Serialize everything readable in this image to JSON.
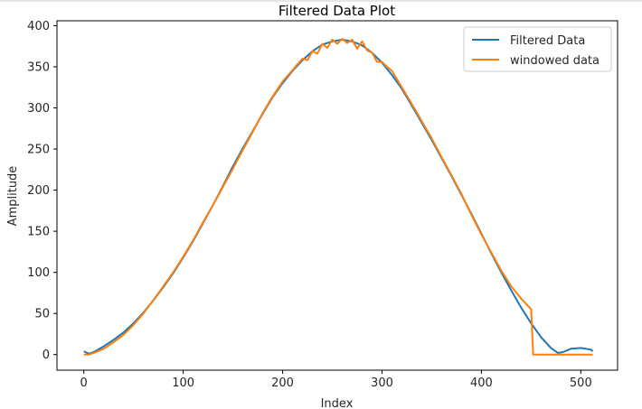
{
  "chart_data": {
    "type": "line",
    "title": "Filtered Data Plot",
    "xlabel": "Index",
    "ylabel": "Amplitude",
    "xlim": [
      -27,
      537
    ],
    "ylim": [
      -19,
      406
    ],
    "xticks": [
      0,
      100,
      200,
      300,
      400,
      500
    ],
    "yticks": [
      0,
      50,
      100,
      150,
      200,
      250,
      300,
      350,
      400
    ],
    "grid": false,
    "legend_position": "top-right",
    "series": [
      {
        "name": "Filtered Data",
        "color": "#1f77b4",
        "x": [
          0,
          5,
          10,
          20,
          30,
          40,
          50,
          60,
          70,
          80,
          90,
          100,
          110,
          120,
          130,
          140,
          150,
          160,
          170,
          180,
          190,
          200,
          210,
          220,
          230,
          240,
          250,
          260,
          270,
          280,
          290,
          300,
          310,
          320,
          330,
          340,
          350,
          360,
          370,
          380,
          390,
          400,
          410,
          420,
          430,
          440,
          450,
          460,
          470,
          477,
          482,
          490,
          500,
          510,
          512
        ],
        "y": [
          4,
          1,
          3,
          10,
          18,
          27,
          38,
          51,
          66,
          82,
          99,
          118,
          138,
          160,
          182,
          205,
          229,
          251,
          272,
          293,
          313,
          330,
          345,
          358,
          369,
          377,
          381,
          383,
          381,
          376,
          367,
          355,
          340,
          323,
          303,
          282,
          261,
          239,
          217,
          194,
          171,
          147,
          123,
          100,
          78,
          57,
          38,
          21,
          8,
          2,
          3,
          7,
          8,
          6,
          4
        ]
      },
      {
        "name": "windowed data",
        "color": "#ff7f0e",
        "x": [
          0,
          5,
          10,
          20,
          30,
          40,
          50,
          60,
          70,
          80,
          90,
          100,
          110,
          120,
          130,
          140,
          150,
          160,
          170,
          180,
          190,
          200,
          210,
          220,
          225,
          230,
          235,
          240,
          245,
          250,
          255,
          260,
          265,
          270,
          275,
          280,
          285,
          290,
          295,
          300,
          305,
          310,
          320,
          330,
          340,
          350,
          360,
          370,
          380,
          390,
          400,
          410,
          420,
          430,
          440,
          450,
          451,
          452,
          460,
          480,
          500,
          512
        ],
        "y": [
          0,
          0,
          2,
          7,
          15,
          24,
          36,
          50,
          66,
          83,
          100,
          119,
          139,
          161,
          182,
          204,
          226,
          249,
          271,
          294,
          314,
          332,
          346,
          360,
          358,
          369,
          366,
          378,
          373,
          383,
          378,
          384,
          379,
          383,
          372,
          381,
          370,
          367,
          356,
          356,
          350,
          345,
          325,
          305,
          284,
          263,
          240,
          218,
          195,
          170,
          146,
          124,
          102,
          83,
          68,
          55,
          29,
          0,
          0,
          0,
          0,
          0
        ]
      }
    ]
  }
}
